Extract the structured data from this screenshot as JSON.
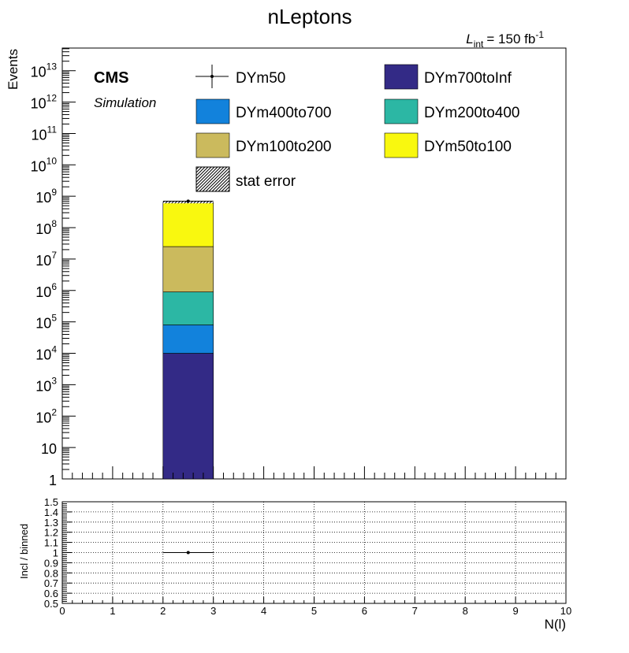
{
  "chart_data": [
    {
      "type": "bar",
      "stacked": true,
      "title": "nLeptons",
      "lumi": {
        "symbol": "L",
        "subscript": "int",
        "value": "= 150 fb",
        "superscript": "-1"
      },
      "cms_label": "CMS",
      "cms_sublabel": "Simulation",
      "ylabel": "Events",
      "yscale": "log",
      "ylim": [
        1,
        60000000000000
      ],
      "xlim": [
        0,
        10
      ],
      "x_bin": [
        2,
        3
      ],
      "series": [
        {
          "name": "DYm700toInf",
          "color": "#332a86",
          "value": 10000
        },
        {
          "name": "DYm400to700",
          "color": "#1282dc",
          "value": 80000
        },
        {
          "name": "DYm200to400",
          "color": "#2cb7a4",
          "value": 900000
        },
        {
          "name": "DYm100to200",
          "color": "#cbba5d",
          "value": 25000000
        },
        {
          "name": "DYm50to100",
          "color": "#f9f80f",
          "value": 650000000
        }
      ],
      "points": [
        {
          "name": "DYm50",
          "x": 2.5,
          "y": 700000000
        }
      ],
      "legend_extra": "stat error",
      "yticks_major": [
        {
          "v": 1,
          "base": "1",
          "exp": ""
        },
        {
          "v": 10,
          "base": "10",
          "exp": ""
        },
        {
          "v": 100,
          "base": "10",
          "exp": "2"
        },
        {
          "v": 1000,
          "base": "10",
          "exp": "3"
        },
        {
          "v": 10000,
          "base": "10",
          "exp": "4"
        },
        {
          "v": 100000,
          "base": "10",
          "exp": "5"
        },
        {
          "v": 1000000,
          "base": "10",
          "exp": "6"
        },
        {
          "v": 10000000,
          "base": "10",
          "exp": "7"
        },
        {
          "v": 100000000,
          "base": "10",
          "exp": "8"
        },
        {
          "v": 1000000000,
          "base": "10",
          "exp": "9"
        },
        {
          "v": 10000000000,
          "base": "10",
          "exp": "10"
        },
        {
          "v": 100000000000,
          "base": "10",
          "exp": "11"
        },
        {
          "v": 1000000000000,
          "base": "10",
          "exp": "12"
        },
        {
          "v": 10000000000000,
          "base": "10",
          "exp": "13"
        }
      ]
    },
    {
      "type": "scatter",
      "ylabel": "Incl / binned",
      "xlabel": "N(l)",
      "ylim": [
        0.5,
        1.5
      ],
      "xlim": [
        0,
        10
      ],
      "grid": true,
      "yticks": [
        "0.5",
        "0.6",
        "0.7",
        "0.8",
        "0.9",
        "1",
        "1.1",
        "1.2",
        "1.3",
        "1.4",
        "1.5"
      ],
      "xticks": [
        "0",
        "1",
        "2",
        "3",
        "4",
        "5",
        "6",
        "7",
        "8",
        "9",
        "10"
      ],
      "points": [
        {
          "x": 2.5,
          "y": 1.0,
          "xerr": 0.5
        }
      ]
    }
  ]
}
